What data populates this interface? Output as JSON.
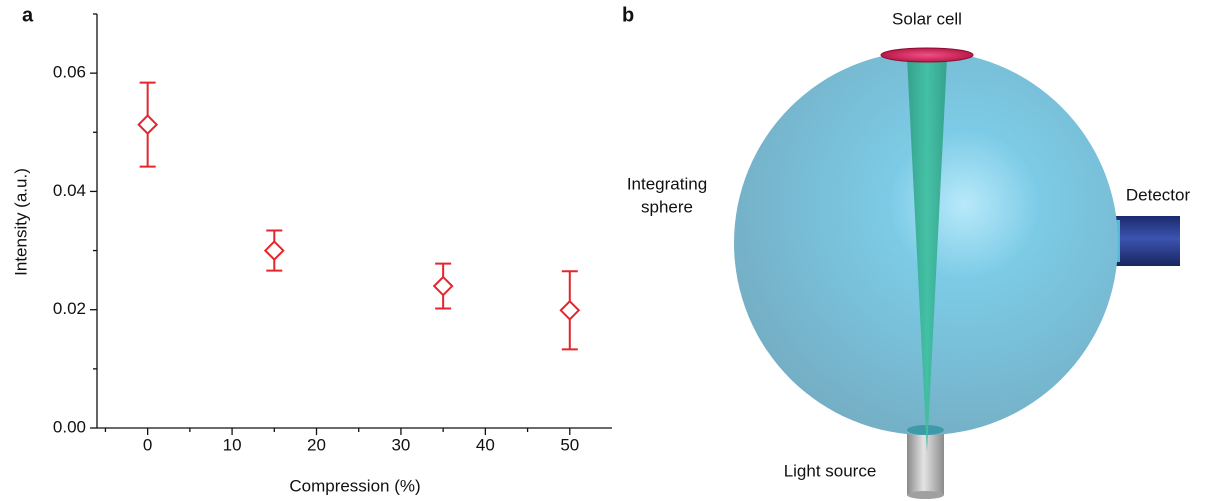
{
  "chart_data": {
    "type": "scatter",
    "panel_label": "a",
    "xlabel": "Compression (%)",
    "ylabel": "Intensity (a.u.)",
    "x": [
      0,
      15,
      35,
      50
    ],
    "values": [
      0.0513,
      0.03,
      0.024,
      0.0199
    ],
    "errors": [
      0.0071,
      0.0034,
      0.0038,
      0.0066
    ],
    "color": "#e3262c",
    "marker": "diamond",
    "xlim": [
      -6,
      55
    ],
    "xticks": [
      0,
      10,
      20,
      30,
      40,
      50
    ],
    "xminorticks": [
      -5,
      5,
      15,
      25,
      35,
      45
    ],
    "ylim": [
      0,
      0.07
    ],
    "yticks": [
      {
        "value": 0,
        "label": "0.00"
      },
      0.02,
      0.04,
      0.06
    ],
    "yminorticks": [
      0.01,
      0.03,
      0.05,
      0.07
    ],
    "grid": false
  },
  "diagram": {
    "panel_label": "b",
    "nodes": [
      {
        "label": "Solar cell"
      },
      {
        "label": "Integrating"
      },
      {
        "label": "sphere"
      },
      {
        "label": "Detector"
      },
      {
        "label": "Light source"
      }
    ]
  }
}
